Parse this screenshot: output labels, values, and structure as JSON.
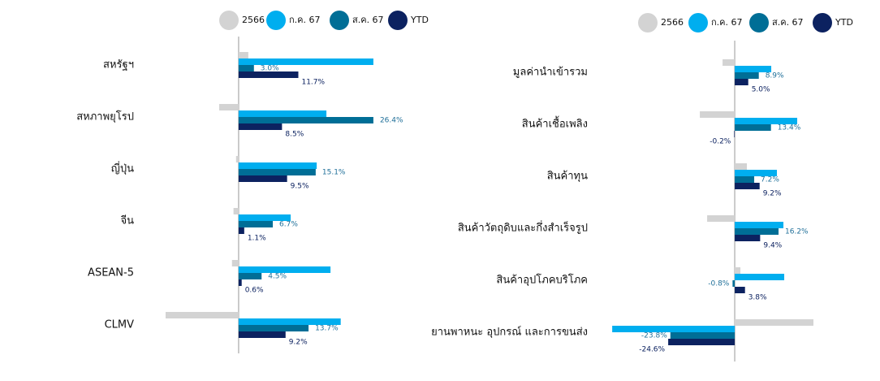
{
  "chart_data": [
    {
      "type": "bar",
      "orientation": "horizontal",
      "categories": [
        "สหรัฐฯ",
        "สหภาพยุโรป",
        "ญี่ปุ่น",
        "จีน",
        "ASEAN-5",
        "CLMV"
      ],
      "xlim": [
        -15,
        28
      ],
      "series": [
        {
          "name": "2566",
          "color": "#d3d3d3",
          "values": [
            1.9,
            -3.8,
            -0.5,
            -1.0,
            -1.3,
            -14.3
          ]
        },
        {
          "name": "ก.ค. 67",
          "color": "#00aeef",
          "values": [
            26.4,
            17.2,
            15.3,
            10.2,
            18.0,
            20.0
          ]
        },
        {
          "name": "ส.ค. 67",
          "color": "#006e96",
          "values": [
            3.0,
            26.4,
            15.1,
            6.7,
            4.5,
            13.7
          ],
          "value_labels": [
            "3.0%",
            "26.4%",
            "15.1%",
            "6.7%",
            "4.5%",
            "13.7%"
          ]
        },
        {
          "name": "YTD",
          "color": "#0c2260",
          "values": [
            11.7,
            8.5,
            9.5,
            1.1,
            0.6,
            9.2
          ],
          "value_labels": [
            "11.7%",
            "8.5%",
            "9.5%",
            "1.1%",
            "0.6%",
            "9.2%"
          ]
        }
      ]
    },
    {
      "type": "bar",
      "orientation": "horizontal",
      "categories": [
        "มูลค่านำเข้ารวม",
        "สินค้าเชื้อเพลิง",
        "สินค้าทุน",
        "สินค้าวัตถุดิบและกึ่งสำเร็จรูป",
        "สินค้าอุปโภคบริโภค",
        "ยานพาหนะ อุปกรณ์ และการขนส่ง"
      ],
      "xlim": [
        -46,
        30
      ],
      "series": [
        {
          "name": "2566",
          "color": "#d3d3d3",
          "values": [
            -4.5,
            -12.9,
            4.5,
            -10.2,
            2.1,
            29.1
          ]
        },
        {
          "name": "ก.ค. 67",
          "color": "#00aeef",
          "values": [
            13.5,
            23.1,
            15.6,
            18.0,
            18.3,
            -45.3
          ]
        },
        {
          "name": "ส.ค. 67",
          "color": "#006e96",
          "values": [
            8.9,
            13.4,
            7.2,
            16.2,
            -0.8,
            -23.8
          ],
          "value_labels": [
            "8.9%",
            "13.4%",
            "7.2%",
            "16.2%",
            "-0.8%",
            "-23.8%"
          ]
        },
        {
          "name": "YTD",
          "color": "#0c2260",
          "values": [
            5.0,
            -0.2,
            9.2,
            9.4,
            3.8,
            -24.6
          ],
          "value_labels": [
            "5.0%",
            "-0.2%",
            "9.2%",
            "9.4%",
            "3.8%",
            "-24.6%"
          ]
        }
      ]
    }
  ]
}
